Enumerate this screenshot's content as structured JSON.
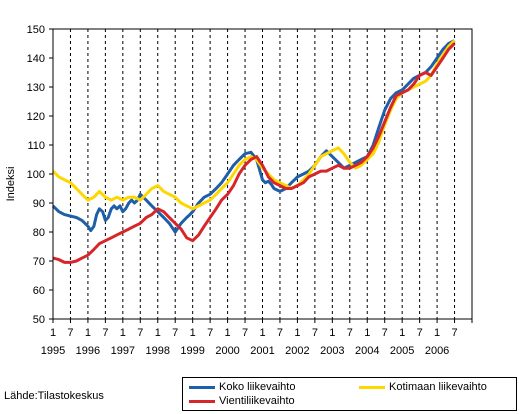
{
  "chart_data": {
    "type": "line",
    "title": "",
    "xlabel": "",
    "ylabel": "Indeksi",
    "ylim": [
      50,
      150
    ],
    "yticks": [
      50,
      60,
      70,
      80,
      90,
      100,
      110,
      120,
      130,
      140,
      150
    ],
    "x_tick_months": [
      "1",
      "7",
      "1",
      "7",
      "1",
      "7",
      "1",
      "7",
      "1",
      "7",
      "1",
      "7",
      "1",
      "7",
      "1",
      "7",
      "1",
      "7",
      "1",
      "7",
      "1",
      "7",
      "1",
      "7"
    ],
    "x_tick_years": [
      "1995",
      "1996",
      "1997",
      "1998",
      "1999",
      "2000",
      "2001",
      "2002",
      "2003",
      "2004",
      "2005",
      "2006"
    ],
    "xlim": [
      1995.0,
      2007.0
    ],
    "grid": {
      "vertical": "dashed",
      "horizontal": "none"
    },
    "legend_position": "bottom-right",
    "series": [
      {
        "name": "Koko liikevaihto",
        "color": "#1f5fa8",
        "x": [
          1995.0,
          1995.17,
          1995.33,
          1995.5,
          1995.67,
          1995.83,
          1996.0,
          1996.08,
          1996.17,
          1996.25,
          1996.33,
          1996.42,
          1996.5,
          1996.58,
          1996.67,
          1996.75,
          1996.83,
          1996.92,
          1997.0,
          1997.08,
          1997.17,
          1997.25,
          1997.33,
          1997.42,
          1997.5,
          1997.67,
          1997.83,
          1998.0,
          1998.17,
          1998.33,
          1998.5,
          1998.67,
          1998.83,
          1998.92,
          1999.0,
          1999.17,
          1999.33,
          1999.5,
          1999.67,
          1999.83,
          2000.0,
          2000.17,
          2000.33,
          2000.5,
          2000.67,
          2000.83,
          2001.0,
          2001.08,
          2001.17,
          2001.25,
          2001.33,
          2001.5,
          2001.67,
          2001.83,
          2002.0,
          2002.17,
          2002.33,
          2002.5,
          2002.67,
          2002.83,
          2003.0,
          2003.17,
          2003.33,
          2003.5,
          2003.67,
          2003.83,
          2004.0,
          2004.17,
          2004.33,
          2004.5,
          2004.67,
          2004.83,
          2005.0,
          2005.17,
          2005.33,
          2005.5,
          2005.67,
          2005.83,
          2006.0,
          2006.17,
          2006.33,
          2006.5
        ],
        "y": [
          89,
          87,
          86,
          85.5,
          85,
          84,
          82,
          80.5,
          82,
          86,
          88,
          87,
          84,
          85,
          88,
          89,
          88,
          89,
          87,
          88,
          90,
          91,
          90,
          91,
          93,
          91,
          89,
          87,
          85,
          83,
          80,
          83,
          85,
          86,
          87,
          90,
          92,
          93,
          95,
          97,
          100,
          103,
          105,
          107,
          107.5,
          105,
          98,
          97,
          97.5,
          96.5,
          95,
          94,
          95,
          97,
          99,
          100,
          101,
          103,
          106,
          108,
          106,
          104,
          102,
          103,
          104,
          105,
          106,
          110,
          116,
          122,
          126,
          128,
          129,
          131,
          133,
          134,
          135,
          137,
          140,
          143,
          145,
          146
        ]
      },
      {
        "name": "Kotimaan liikevaihto",
        "color": "#ffd700",
        "x": [
          1995.0,
          1995.17,
          1995.33,
          1995.5,
          1995.67,
          1995.83,
          1996.0,
          1996.17,
          1996.33,
          1996.5,
          1996.67,
          1996.83,
          1997.0,
          1997.17,
          1997.33,
          1997.5,
          1997.67,
          1997.83,
          1998.0,
          1998.17,
          1998.33,
          1998.5,
          1998.67,
          1998.83,
          1999.0,
          1999.17,
          1999.33,
          1999.5,
          1999.67,
          1999.83,
          2000.0,
          2000.17,
          2000.33,
          2000.5,
          2000.67,
          2000.83,
          2001.0,
          2001.17,
          2001.33,
          2001.5,
          2001.67,
          2001.83,
          2002.0,
          2002.17,
          2002.33,
          2002.5,
          2002.67,
          2002.83,
          2003.0,
          2003.17,
          2003.33,
          2003.5,
          2003.67,
          2003.83,
          2004.0,
          2004.17,
          2004.33,
          2004.5,
          2004.67,
          2004.83,
          2005.0,
          2005.17,
          2005.33,
          2005.5,
          2005.67,
          2005.83,
          2006.0,
          2006.17,
          2006.33,
          2006.5
        ],
        "y": [
          101,
          99,
          98,
          97,
          95,
          93,
          91,
          92,
          94,
          92,
          91,
          92,
          91,
          92,
          92,
          91,
          93,
          95,
          96,
          94,
          93,
          92,
          90,
          89,
          88,
          89,
          90,
          91,
          93,
          95,
          97,
          100,
          103,
          105,
          106,
          105,
          102,
          100,
          98,
          97,
          96,
          95,
          96,
          98,
          100,
          103,
          106,
          107,
          108,
          109,
          107,
          104,
          102,
          103,
          105,
          107,
          111,
          117,
          122,
          126,
          128,
          129,
          130,
          131,
          132,
          134,
          138,
          141,
          144,
          146
        ]
      },
      {
        "name": "Vientiliikevaihto",
        "color": "#d7262b",
        "x": [
          1995.0,
          1995.17,
          1995.33,
          1995.5,
          1995.67,
          1995.83,
          1996.0,
          1996.17,
          1996.33,
          1996.5,
          1996.67,
          1996.83,
          1997.0,
          1997.17,
          1997.33,
          1997.5,
          1997.67,
          1997.83,
          1998.0,
          1998.17,
          1998.33,
          1998.5,
          1998.67,
          1998.83,
          1999.0,
          1999.17,
          1999.33,
          1999.5,
          1999.67,
          1999.83,
          2000.0,
          2000.17,
          2000.33,
          2000.5,
          2000.67,
          2000.83,
          2001.0,
          2001.17,
          2001.33,
          2001.5,
          2001.67,
          2001.83,
          2002.0,
          2002.17,
          2002.33,
          2002.5,
          2002.67,
          2002.83,
          2003.0,
          2003.17,
          2003.33,
          2003.5,
          2003.67,
          2003.83,
          2004.0,
          2004.17,
          2004.33,
          2004.5,
          2004.67,
          2004.83,
          2005.0,
          2005.17,
          2005.33,
          2005.5,
          2005.67,
          2005.83,
          2006.0,
          2006.17,
          2006.33,
          2006.5
        ],
        "y": [
          71,
          70.5,
          69.5,
          69.5,
          70,
          71,
          72,
          74,
          76,
          77,
          78,
          79,
          80,
          81,
          82,
          83,
          85,
          86,
          88,
          87,
          85,
          83,
          81,
          78,
          77,
          79,
          82,
          85,
          88,
          91,
          93,
          96,
          100,
          103,
          105,
          106,
          103,
          99,
          97,
          96,
          95,
          95,
          96,
          97,
          99,
          100,
          101,
          101,
          102,
          103,
          102,
          102,
          103,
          104,
          106,
          109,
          113,
          118,
          123,
          127,
          128,
          129,
          131,
          134,
          135,
          134,
          137,
          140,
          143,
          145
        ]
      }
    ]
  },
  "source": "Lähde:Tilastokeskus"
}
